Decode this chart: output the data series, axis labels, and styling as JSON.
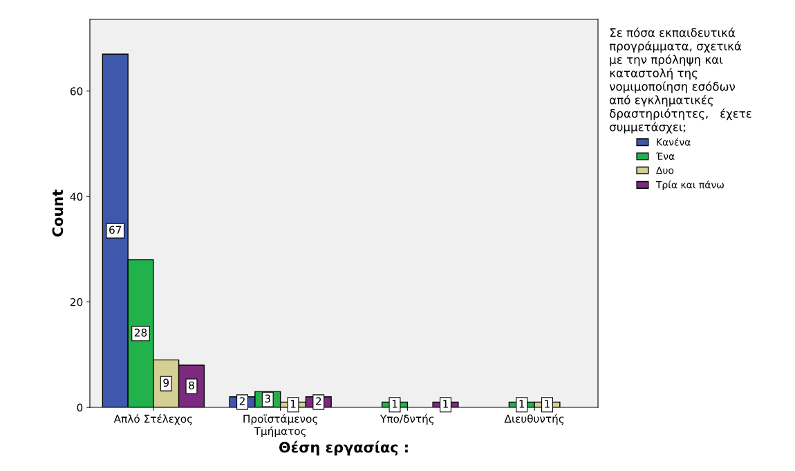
{
  "chart_data": {
    "type": "bar",
    "xlabel": "Θέση εργασίας :",
    "ylabel": "Count",
    "legend_title": "Σε πόσα εκπαιδευτικά\nπρογράμματα, σχετικά\nμε την πρόληψη και\nκαταστολή της\nνομιμοποίηση εσόδων\nαπό εγκληματικές\nδραστηριότητες,   έχετε\nσυμμετάσχει;",
    "categories": [
      "Απλό Στέλεχος",
      "Προϊστάμενος\nΤμήματος",
      "Υπο/δντής",
      "Διευθυντής"
    ],
    "series": [
      {
        "name": "Κανένα",
        "color": "#3e58ac",
        "values": [
          67,
          2,
          null,
          null
        ]
      },
      {
        "name": "Ένα",
        "color": "#22b24c",
        "values": [
          28,
          3,
          1,
          1
        ]
      },
      {
        "name": "Δυο",
        "color": "#d6cf94",
        "values": [
          9,
          1,
          null,
          1
        ]
      },
      {
        "name": "Τρία και πάνω",
        "color": "#7b2a7f",
        "values": [
          8,
          2,
          1,
          null
        ]
      }
    ],
    "ylim": [
      0,
      73.6
    ],
    "yticks": [
      0,
      20,
      40,
      60
    ],
    "grid": false,
    "legend": "right",
    "data_labels": true
  }
}
